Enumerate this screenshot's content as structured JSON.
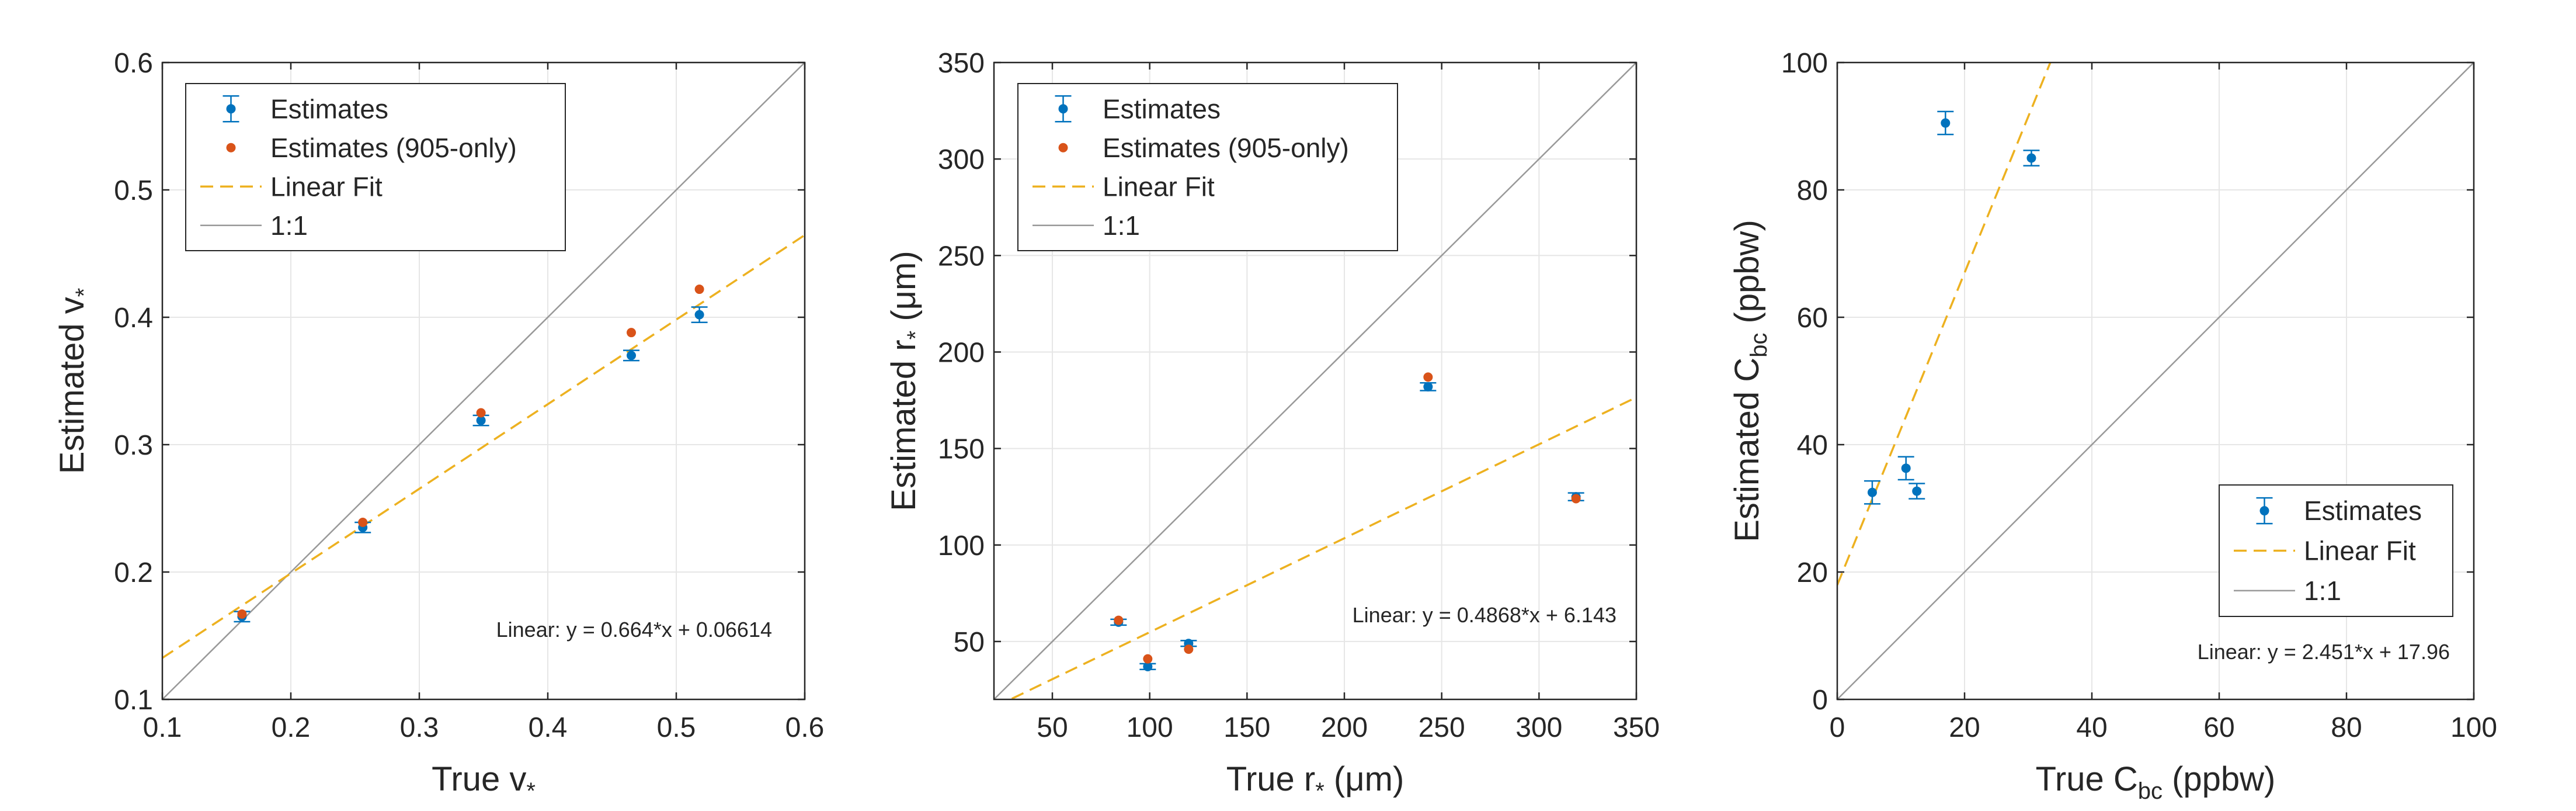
{
  "colors": {
    "estimates": "#0072BD",
    "estimates_905": "#D95319",
    "linear_fit": "#EDB120",
    "one_to_one": "#999999",
    "grid": "#e6e6e6",
    "axis": "#262626"
  },
  "chart_data": [
    {
      "type": "scatter",
      "xlabel": {
        "main": "True v",
        "sub": "*",
        "post": ""
      },
      "ylabel": {
        "main": "Estimated v",
        "sub": "*",
        "post": ""
      },
      "xlim": [
        0.1,
        0.6
      ],
      "ylim": [
        0.1,
        0.6
      ],
      "xticks": [
        0.1,
        0.2,
        0.3,
        0.4,
        0.5,
        0.6
      ],
      "yticks": [
        0.1,
        0.2,
        0.3,
        0.4,
        0.5,
        0.6
      ],
      "xtick_labels": [
        "0.1",
        "0.2",
        "0.3",
        "0.4",
        "0.5",
        "0.6"
      ],
      "ytick_labels": [
        "0.1",
        "0.2",
        "0.3",
        "0.4",
        "0.5",
        "0.6"
      ],
      "grid": true,
      "legend_position": "top-left",
      "legend": [
        "Estimates",
        "Estimates (905-only)",
        "Linear Fit",
        "1:1"
      ],
      "series": [
        {
          "name": "Estimates",
          "points": [
            {
              "x": 0.162,
              "y": 0.165,
              "err": 0.004
            },
            {
              "x": 0.256,
              "y": 0.235,
              "err": 0.004
            },
            {
              "x": 0.348,
              "y": 0.319,
              "err": 0.004
            },
            {
              "x": 0.465,
              "y": 0.37,
              "err": 0.004
            },
            {
              "x": 0.518,
              "y": 0.402,
              "err": 0.006
            }
          ]
        },
        {
          "name": "Estimates (905-only)",
          "points": [
            {
              "x": 0.162,
              "y": 0.167
            },
            {
              "x": 0.256,
              "y": 0.239
            },
            {
              "x": 0.348,
              "y": 0.325
            },
            {
              "x": 0.465,
              "y": 0.388
            },
            {
              "x": 0.518,
              "y": 0.422
            }
          ]
        }
      ],
      "fit": {
        "slope": 0.664,
        "intercept": 0.06614
      },
      "annotation": "Linear:  y = 0.664*x + 0.06614"
    },
    {
      "type": "scatter",
      "xlabel": {
        "main": "True r",
        "sub": "*",
        "post": " (μm)"
      },
      "ylabel": {
        "main": "Estimated r",
        "sub": "*",
        "post": " (μm)"
      },
      "xlim": [
        20,
        350
      ],
      "ylim": [
        20,
        350
      ],
      "xticks": [
        50,
        100,
        150,
        200,
        250,
        300,
        350
      ],
      "yticks": [
        50,
        100,
        150,
        200,
        250,
        300,
        350
      ],
      "xtick_labels": [
        "50",
        "100",
        "150",
        "200",
        "250",
        "300",
        "350"
      ],
      "ytick_labels": [
        "50",
        "100",
        "150",
        "200",
        "250",
        "300",
        "350"
      ],
      "grid": true,
      "legend_position": "top-left",
      "legend": [
        "Estimates",
        "Estimates (905-only)",
        "Linear Fit",
        "1:1"
      ],
      "series": [
        {
          "name": "Estimates",
          "points": [
            {
              "x": 84,
              "y": 60,
              "err": 1.5
            },
            {
              "x": 99,
              "y": 37,
              "err": 1.5
            },
            {
              "x": 120,
              "y": 49,
              "err": 1.5
            },
            {
              "x": 243,
              "y": 182,
              "err": 2
            },
            {
              "x": 319,
              "y": 125,
              "err": 2
            }
          ]
        },
        {
          "name": "Estimates (905-only)",
          "points": [
            {
              "x": 84,
              "y": 61
            },
            {
              "x": 99,
              "y": 41
            },
            {
              "x": 120,
              "y": 46
            },
            {
              "x": 243,
              "y": 187
            },
            {
              "x": 319,
              "y": 124
            }
          ]
        }
      ],
      "fit": {
        "slope": 0.4868,
        "intercept": 6.143
      },
      "annotation": "Linear:  y = 0.4868*x + 6.143"
    },
    {
      "type": "scatter",
      "xlabel": {
        "main": "True C",
        "sub": "bc",
        "post": " (ppbw)"
      },
      "ylabel": {
        "main": "Estimated C",
        "sub": "bc",
        "post": " (ppbw)"
      },
      "xlim": [
        0,
        100
      ],
      "ylim": [
        0,
        100
      ],
      "xticks": [
        0,
        20,
        40,
        60,
        80,
        100
      ],
      "yticks": [
        0,
        20,
        40,
        60,
        80,
        100
      ],
      "xtick_labels": [
        "0",
        "20",
        "40",
        "60",
        "80",
        "100"
      ],
      "ytick_labels": [
        "0",
        "20",
        "40",
        "60",
        "80",
        "100"
      ],
      "grid": true,
      "legend_position": "bottom-right",
      "legend": [
        "Estimates",
        "Linear Fit",
        "1:1"
      ],
      "series": [
        {
          "name": "Estimates",
          "points": [
            {
              "x": 5.5,
              "y": 32.5,
              "err": 1.8
            },
            {
              "x": 10.8,
              "y": 36.3,
              "err": 1.8
            },
            {
              "x": 12.5,
              "y": 32.7,
              "err": 1.2
            },
            {
              "x": 17.0,
              "y": 90.5,
              "err": 1.8
            },
            {
              "x": 30.5,
              "y": 85.0,
              "err": 1.2
            }
          ]
        }
      ],
      "fit": {
        "slope": 2.451,
        "intercept": 17.96
      },
      "annotation": "Linear:  y = 2.451*x + 17.96"
    }
  ]
}
